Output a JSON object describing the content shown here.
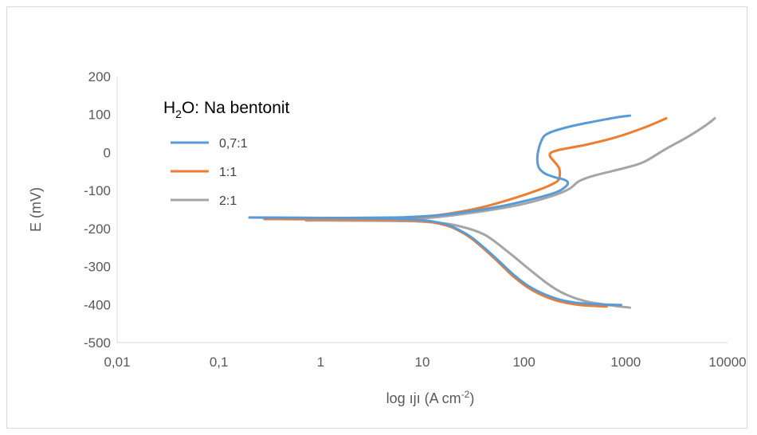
{
  "chart_data": {
    "type": "line",
    "xscale": "log",
    "xlim": [
      0.01,
      10000
    ],
    "ylim": [
      -500,
      200
    ],
    "y_ticks": [
      200,
      100,
      0,
      -100,
      -200,
      -300,
      -400,
      -500
    ],
    "x_ticks": [
      0.01,
      0.1,
      1,
      10,
      100,
      1000,
      10000
    ],
    "x_tick_labels": [
      "0,01",
      "0,1",
      "1",
      "10",
      "100",
      "1000",
      "10000"
    ],
    "xlabel_main": "log ",
    "xlabel_symbol": "ıjı",
    "xlabel_unit": " (A cm",
    "xlabel_exp": "-2",
    "xlabel_close": ")",
    "ylabel": "E (mV)",
    "grid": false,
    "legend": {
      "title_main": "H",
      "title_sub": "2",
      "title_rest": "O: Na bentonit",
      "placement": "top-left"
    },
    "series": [
      {
        "name": "0,7:1",
        "color": "#5b9bd5",
        "cathodic": [
          [
            0.2,
            -171
          ],
          [
            1,
            -172
          ],
          [
            5,
            -174
          ],
          [
            10,
            -178
          ],
          [
            15,
            -185
          ],
          [
            20,
            -196
          ],
          [
            30,
            -222
          ],
          [
            50,
            -272
          ],
          [
            80,
            -323
          ],
          [
            120,
            -357
          ],
          [
            200,
            -383
          ],
          [
            300,
            -394
          ],
          [
            500,
            -399
          ],
          [
            900,
            -401
          ]
        ],
        "anodic": [
          [
            0.2,
            -171
          ],
          [
            1,
            -172
          ],
          [
            5,
            -171
          ],
          [
            10,
            -168
          ],
          [
            20,
            -161
          ],
          [
            50,
            -145
          ],
          [
            100,
            -128
          ],
          [
            200,
            -106
          ],
          [
            250,
            -92
          ],
          [
            270,
            -80
          ],
          [
            250,
            -72
          ],
          [
            200,
            -65
          ],
          [
            160,
            -55
          ],
          [
            140,
            -40
          ],
          [
            135,
            -20
          ],
          [
            137,
            0
          ],
          [
            145,
            25
          ],
          [
            160,
            45
          ],
          [
            200,
            57
          ],
          [
            300,
            70
          ],
          [
            500,
            82
          ],
          [
            800,
            92
          ],
          [
            1100,
            97
          ]
        ]
      },
      {
        "name": "1:1",
        "color": "#ed7d31",
        "cathodic": [
          [
            0.28,
            -175
          ],
          [
            1,
            -176
          ],
          [
            5,
            -177
          ],
          [
            10,
            -180
          ],
          [
            15,
            -188
          ],
          [
            20,
            -198
          ],
          [
            30,
            -225
          ],
          [
            50,
            -276
          ],
          [
            80,
            -328
          ],
          [
            120,
            -362
          ],
          [
            200,
            -388
          ],
          [
            350,
            -401
          ],
          [
            650,
            -405
          ]
        ],
        "anodic": [
          [
            0.28,
            -175
          ],
          [
            1,
            -175
          ],
          [
            5,
            -173
          ],
          [
            10,
            -169
          ],
          [
            20,
            -159
          ],
          [
            40,
            -143
          ],
          [
            80,
            -120
          ],
          [
            150,
            -95
          ],
          [
            200,
            -80
          ],
          [
            220,
            -70
          ],
          [
            225,
            -55
          ],
          [
            220,
            -40
          ],
          [
            200,
            -25
          ],
          [
            180,
            -10
          ],
          [
            185,
            0
          ],
          [
            230,
            8
          ],
          [
            400,
            20
          ],
          [
            800,
            40
          ],
          [
            1500,
            65
          ],
          [
            2500,
            90
          ]
        ]
      },
      {
        "name": "2:1",
        "color": "#a5a5a5",
        "cathodic": [
          [
            0.72,
            -179
          ],
          [
            1,
            -179
          ],
          [
            5,
            -180
          ],
          [
            10,
            -182
          ],
          [
            20,
            -190
          ],
          [
            40,
            -215
          ],
          [
            70,
            -262
          ],
          [
            110,
            -305
          ],
          [
            170,
            -345
          ],
          [
            250,
            -372
          ],
          [
            400,
            -391
          ],
          [
            700,
            -402
          ],
          [
            1100,
            -408
          ]
        ],
        "anodic": [
          [
            0.72,
            -179
          ],
          [
            1,
            -178
          ],
          [
            5,
            -176
          ],
          [
            10,
            -173
          ],
          [
            20,
            -165
          ],
          [
            50,
            -150
          ],
          [
            100,
            -135
          ],
          [
            200,
            -112
          ],
          [
            280,
            -95
          ],
          [
            350,
            -75
          ],
          [
            500,
            -60
          ],
          [
            1000,
            -40
          ],
          [
            1500,
            -25
          ],
          [
            2500,
            10
          ],
          [
            4000,
            40
          ],
          [
            6000,
            70
          ],
          [
            7500,
            90
          ]
        ]
      }
    ]
  }
}
